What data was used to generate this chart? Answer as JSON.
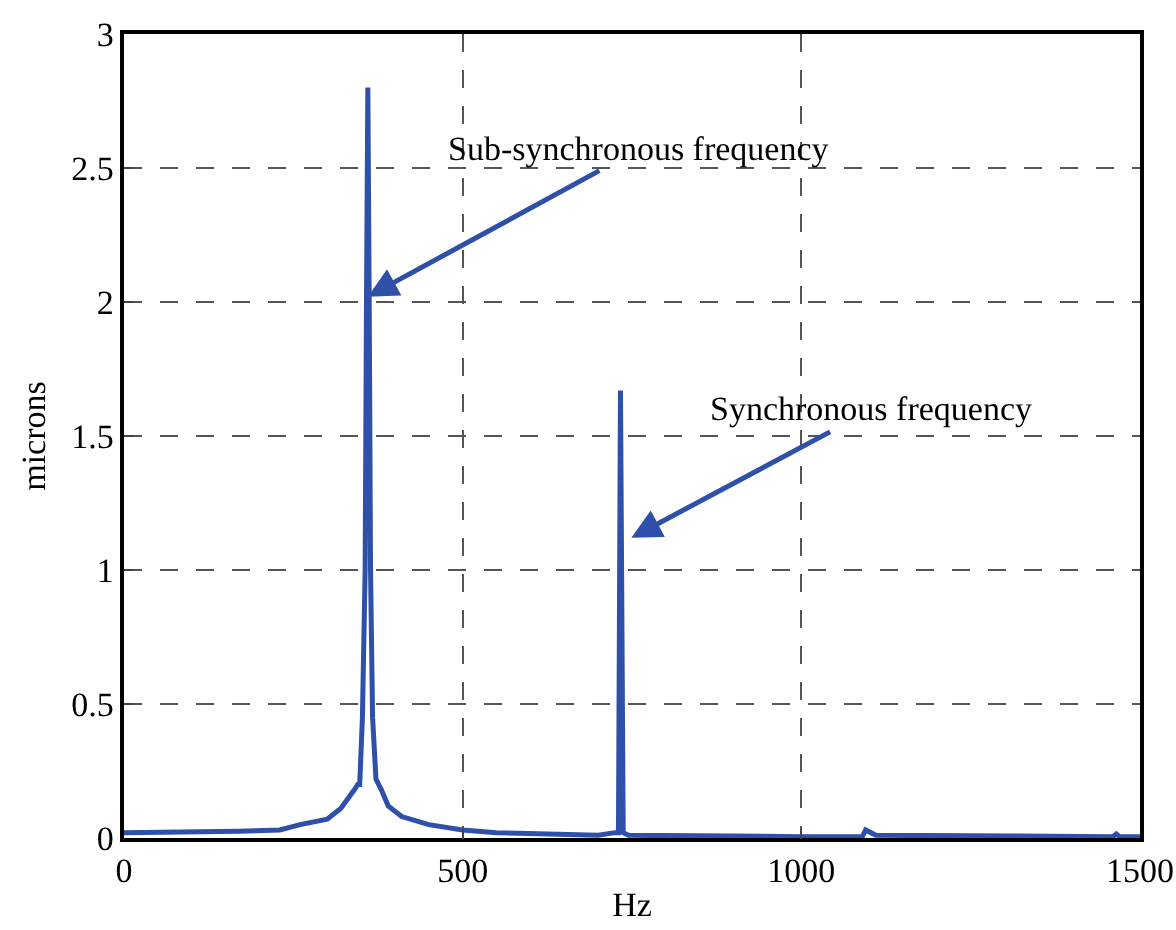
{
  "chart_data": {
    "type": "line",
    "xlabel": "Hz",
    "ylabel": "microns",
    "xlim": [
      0,
      1500
    ],
    "xticks": [
      0,
      500,
      1000,
      1500
    ],
    "ylim": [
      0,
      3
    ],
    "yticks": [
      0,
      0.5,
      1,
      1.5,
      2,
      2.5,
      3
    ],
    "grid": true,
    "line_style": "solid",
    "series": [
      {
        "color": "#2f50a8",
        "x": [
          0,
          170,
          230,
          260,
          300,
          320,
          340,
          345,
          348,
          352,
          356,
          358,
          360,
          362,
          364,
          367,
          372,
          380,
          390,
          410,
          450,
          500,
          550,
          700,
          725,
          730,
          733,
          737,
          745,
          1000,
          1090,
          1095,
          1110,
          1460,
          1465,
          1470,
          1500
        ],
        "values": [
          0.02,
          0.025,
          0.03,
          0.05,
          0.07,
          0.11,
          0.18,
          0.2,
          0.2,
          0.45,
          1.0,
          2.0,
          2.8,
          2.0,
          1.0,
          0.45,
          0.22,
          0.18,
          0.12,
          0.08,
          0.05,
          0.03,
          0.02,
          0.01,
          0.02,
          0.02,
          1.67,
          0.02,
          0.01,
          0.005,
          0.005,
          0.03,
          0.01,
          0.005,
          0.015,
          0.005,
          0.005
        ]
      }
    ],
    "annotations": [
      {
        "text": "Sub-synchronous frequency",
        "x": 360,
        "y": 2.02
      },
      {
        "text": "Synchronous frequency",
        "x": 749,
        "y": 1.12
      }
    ]
  }
}
